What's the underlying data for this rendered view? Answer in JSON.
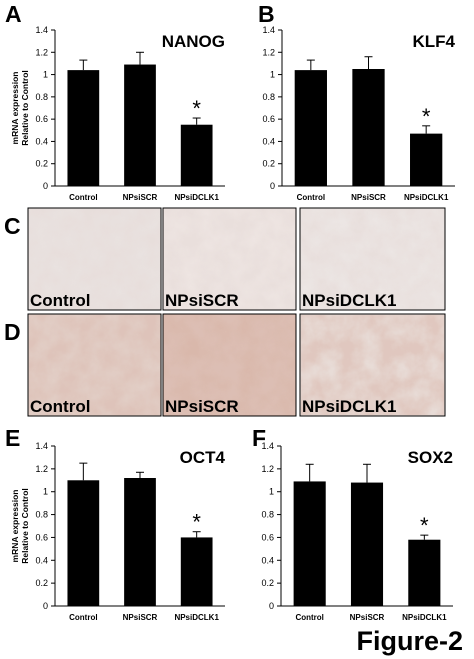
{
  "figure_label": "Figure-2",
  "image_rows": [
    {
      "panel": "C",
      "captions": [
        "Control",
        "NPsiSCR",
        "NPsiDCLK1"
      ]
    },
    {
      "panel": "D",
      "captions": [
        "Control",
        "NPsiSCR",
        "NPsiDCLK1"
      ]
    }
  ],
  "chart_data": [
    {
      "type": "bar",
      "panel": "A",
      "title": "NANOG",
      "ylabel": [
        "mRNA expression",
        "Relative to Control"
      ],
      "categories": [
        "Control",
        "NPsiSCR",
        "NPsiDCLK1"
      ],
      "values": [
        1.04,
        1.09,
        0.55
      ],
      "errors": [
        0.09,
        0.11,
        0.06
      ],
      "significance_marks": [
        null,
        null,
        "*"
      ],
      "color": "#000000",
      "ylim": [
        0,
        1.4
      ],
      "yticks": [
        0,
        0.2,
        0.4,
        0.6,
        0.8,
        1,
        1.2,
        1.4
      ]
    },
    {
      "type": "bar",
      "panel": "B",
      "title": "KLF4",
      "categories": [
        "Control",
        "NPsiSCR",
        "NPsiDCLK1"
      ],
      "values": [
        1.04,
        1.05,
        0.47
      ],
      "errors": [
        0.09,
        0.11,
        0.07
      ],
      "significance_marks": [
        null,
        null,
        "*"
      ],
      "color": "#000000",
      "ylim": [
        0,
        1.4
      ],
      "yticks": [
        0,
        0.2,
        0.4,
        0.6,
        0.8,
        1,
        1.2,
        1.4
      ]
    },
    {
      "type": "bar",
      "panel": "E",
      "title": "OCT4",
      "ylabel": [
        "mRNA expression",
        "Relative to Control"
      ],
      "categories": [
        "Control",
        "NPsiSCR",
        "NPsiDCLK1"
      ],
      "values": [
        1.1,
        1.12,
        0.6
      ],
      "errors": [
        0.15,
        0.05,
        0.05
      ],
      "significance_marks": [
        null,
        null,
        "*"
      ],
      "color": "#000000",
      "ylim": [
        0,
        1.4
      ],
      "yticks": [
        0,
        0.2,
        0.4,
        0.6,
        0.8,
        1,
        1.2,
        1.4
      ]
    },
    {
      "type": "bar",
      "panel": "F",
      "title": "SOX2",
      "categories": [
        "Control",
        "NPsiSCR",
        "NPsiDCLK1"
      ],
      "values": [
        1.09,
        1.08,
        0.58
      ],
      "errors": [
        0.15,
        0.16,
        0.04
      ],
      "significance_marks": [
        null,
        null,
        "*"
      ],
      "color": "#000000",
      "ylim": [
        0,
        1.4
      ],
      "yticks": [
        0,
        0.2,
        0.4,
        0.6,
        0.8,
        1,
        1.2,
        1.4
      ]
    }
  ]
}
